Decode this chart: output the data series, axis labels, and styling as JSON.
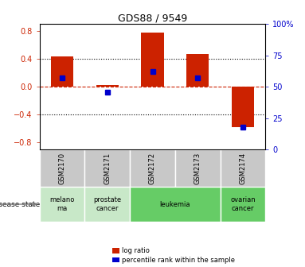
{
  "title": "GDS88 / 9549",
  "samples": [
    "GSM2170",
    "GSM2171",
    "GSM2172",
    "GSM2173",
    "GSM2174"
  ],
  "log_ratio": [
    0.44,
    0.02,
    0.78,
    0.47,
    -0.58
  ],
  "percentile_rank": [
    57,
    46,
    62,
    57,
    18
  ],
  "bar_color": "#cc2200",
  "dot_color": "#0000cc",
  "ylim": [
    -0.9,
    0.9
  ],
  "yticks_left": [
    -0.8,
    -0.4,
    0.0,
    0.4,
    0.8
  ],
  "yticks_right": [
    0,
    25,
    50,
    75,
    100
  ],
  "hline_dotted": [
    -0.4,
    0.4
  ],
  "hline_dashed": 0.0,
  "bar_width": 0.5,
  "legend_labels": [
    "log ratio",
    "percentile rank within the sample"
  ],
  "disease_label": "disease state",
  "disease_groups": [
    {
      "indices": [
        0
      ],
      "label": "melano\nma",
      "color": "#c8e8c8"
    },
    {
      "indices": [
        1
      ],
      "label": "prostate\ncancer",
      "color": "#c8e8c8"
    },
    {
      "indices": [
        2,
        3
      ],
      "label": "leukemia",
      "color": "#66cc66"
    },
    {
      "indices": [
        4
      ],
      "label": "ovarian\ncancer",
      "color": "#66cc66"
    }
  ],
  "sample_box_color": "#c8c8c8",
  "title_fontsize": 9,
  "tick_fontsize": 7,
  "label_fontsize": 6
}
